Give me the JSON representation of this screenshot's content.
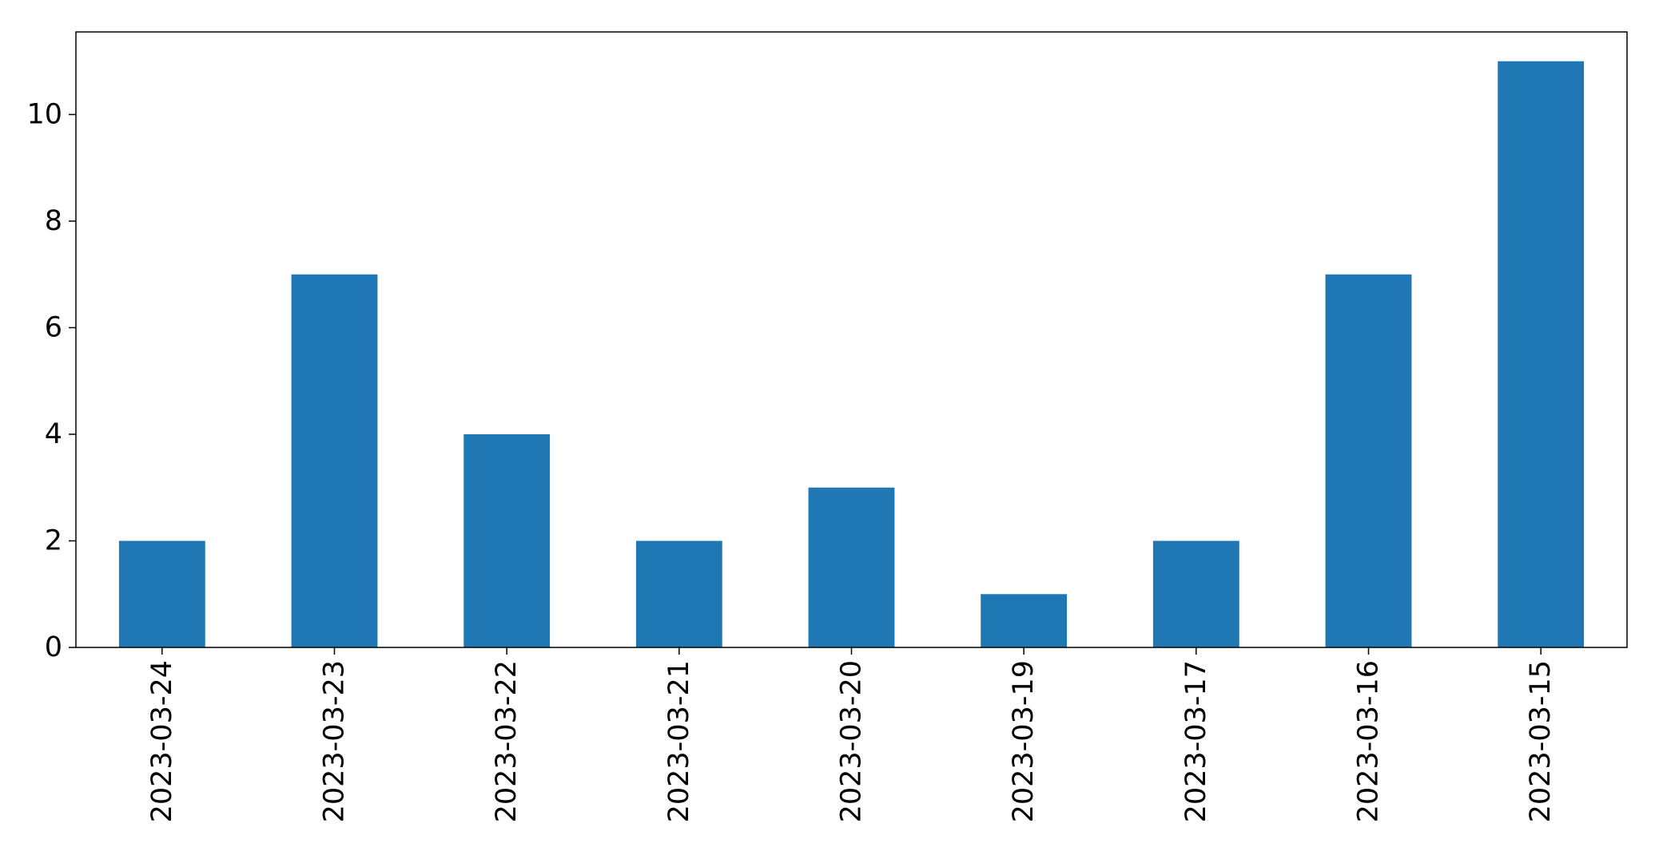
{
  "chart_data": {
    "type": "bar",
    "title": "",
    "xlabel": "",
    "ylabel": "",
    "categories": [
      "2023-03-24",
      "2023-03-23",
      "2023-03-22",
      "2023-03-21",
      "2023-03-20",
      "2023-03-19",
      "2023-03-17",
      "2023-03-16",
      "2023-03-15"
    ],
    "values": [
      2,
      7,
      4,
      2,
      3,
      1,
      2,
      7,
      11
    ],
    "ylim": [
      0,
      11.55
    ],
    "yticks": [
      0,
      2,
      4,
      6,
      8,
      10
    ],
    "grid": false,
    "legend": "none",
    "bar_color": "#1f77b4"
  }
}
